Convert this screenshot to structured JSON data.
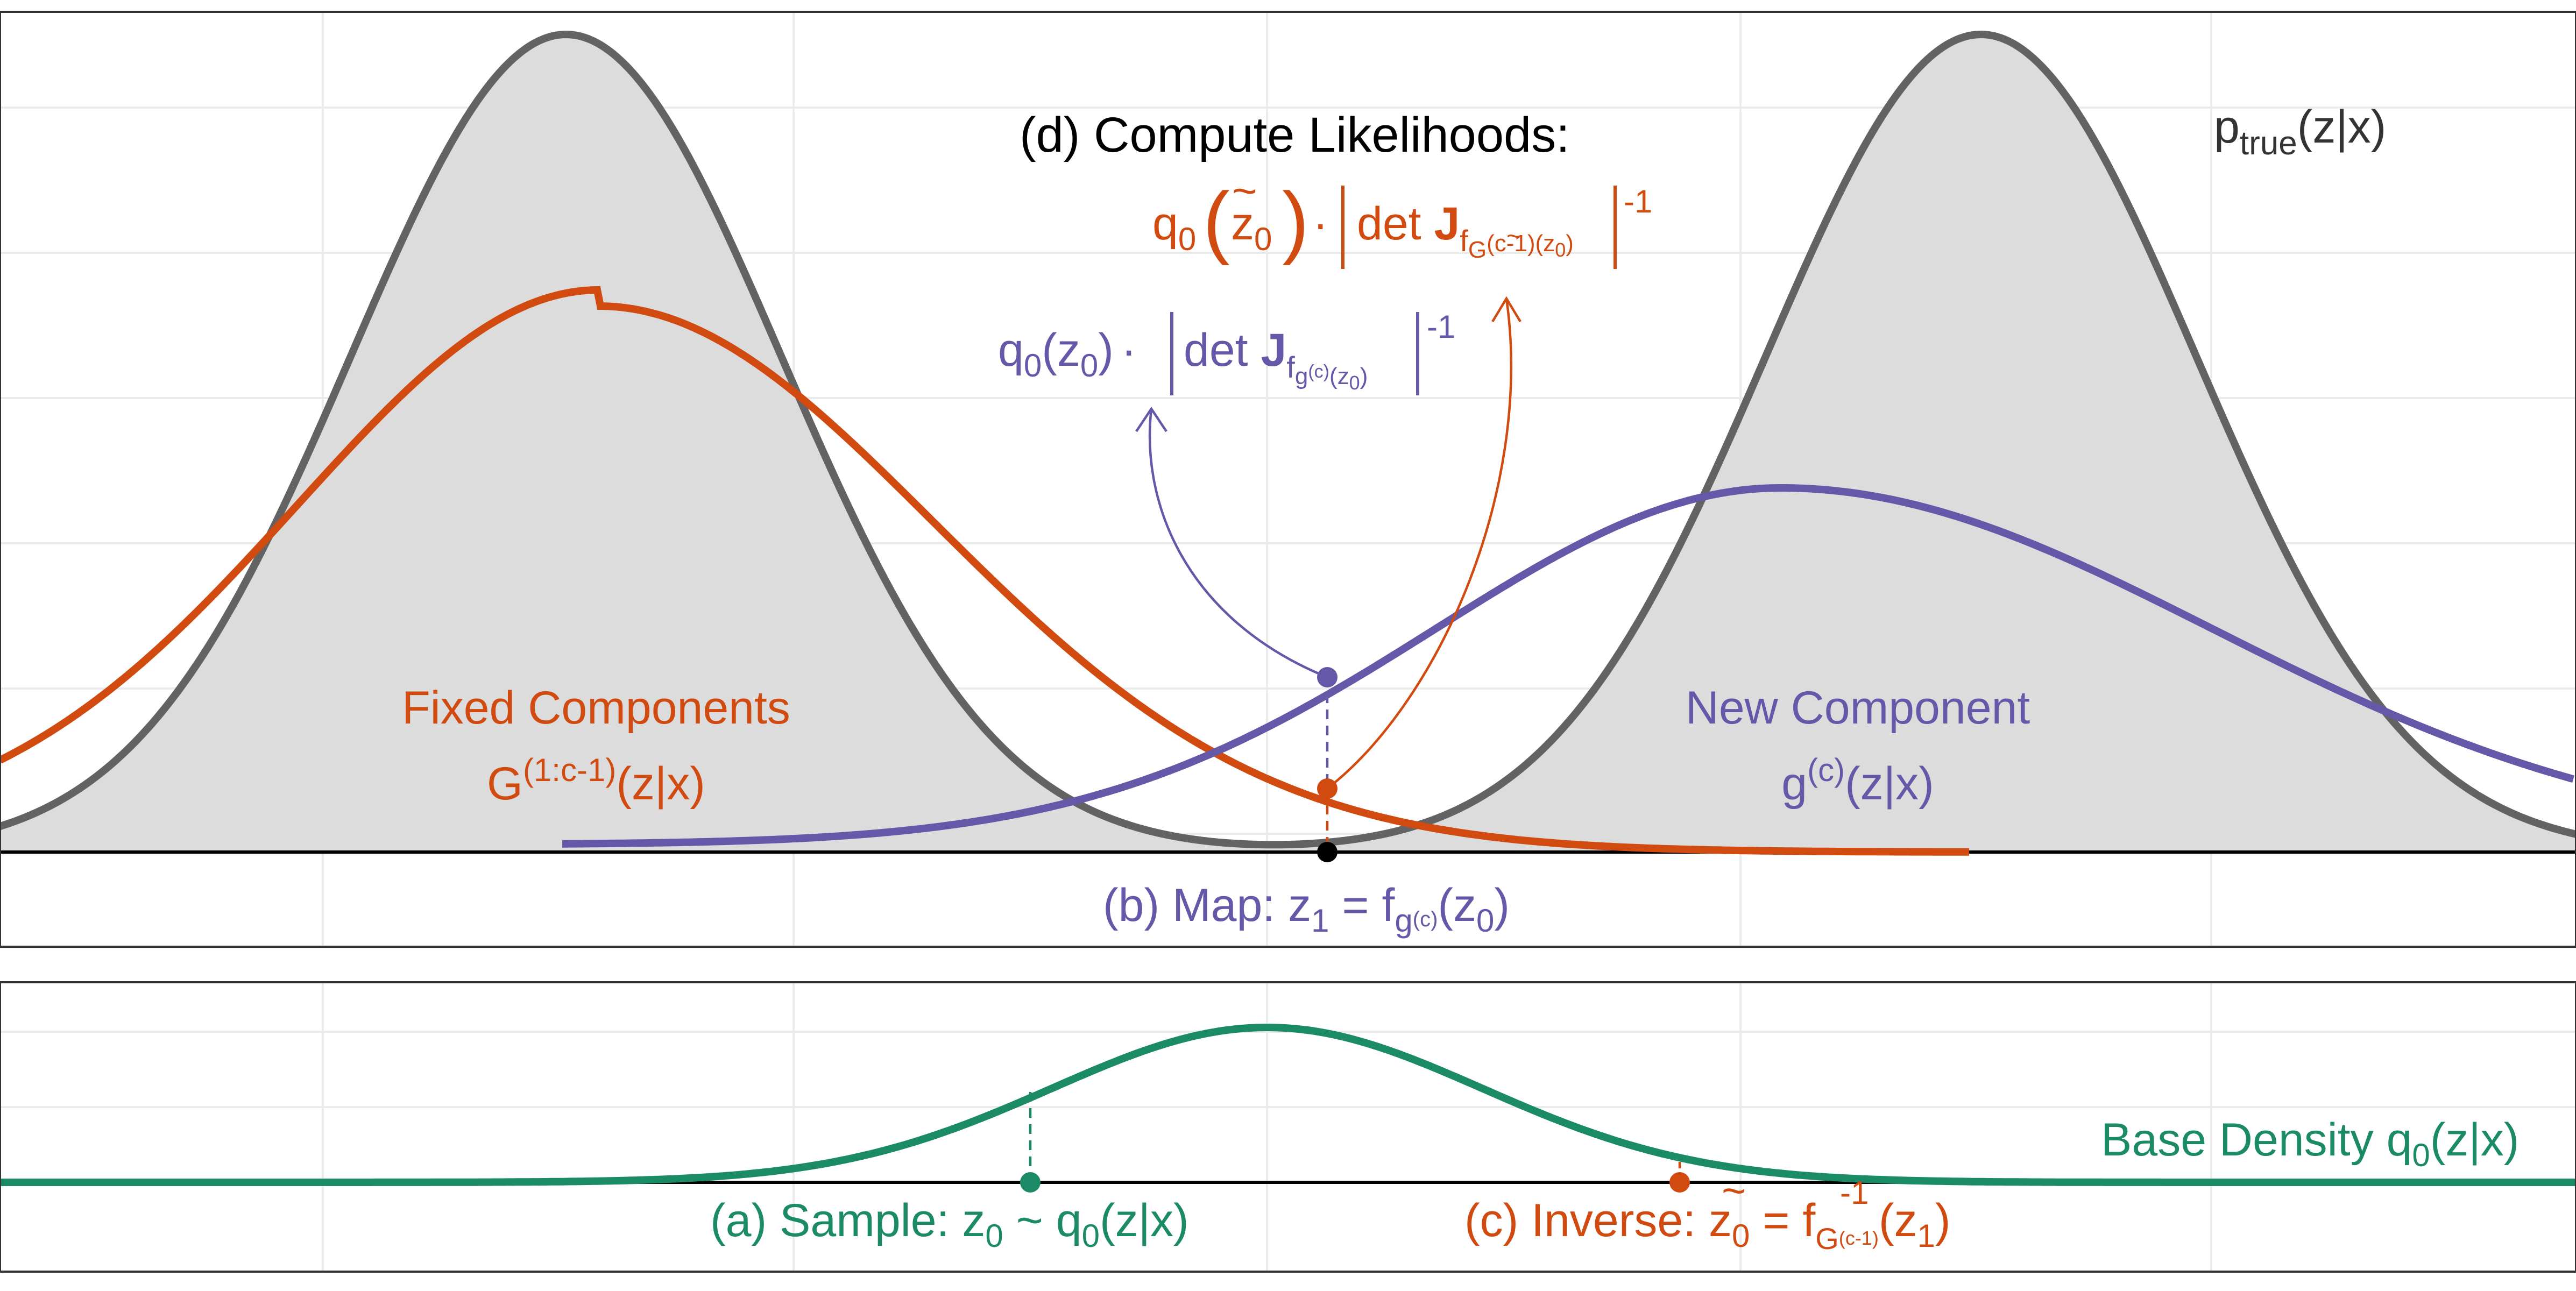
{
  "colors": {
    "gray_fill": "#dcdcdc",
    "gray_line": "#636363",
    "grid": "#ebebeb",
    "panel_border": "#333333",
    "orange": "#d14a0f",
    "purple": "#6558a8",
    "green": "#1b8a66",
    "black": "#000000"
  },
  "labels": {
    "compute_likelihoods": "(d) Compute Likelihoods:",
    "p_true_main": "p",
    "p_true_sub": "true",
    "p_true_tail": "(z|x)",
    "fixed_line1": "Fixed Components",
    "fixed_G": "G",
    "fixed_sup": "(1:c-1)",
    "fixed_tail": "(z|x)",
    "new_line1": "New Component",
    "new_g": "g",
    "new_sup": "(c)",
    "new_tail": "(z|x)",
    "map_text": "(b) Map: z",
    "map_sub1": "1",
    "map_eq": " = f",
    "map_sub_g": "g",
    "map_sub_c": "(c)",
    "map_paren": "(z",
    "map_sub0": "0",
    "map_close": ")",
    "sample_text": "(a) Sample: z",
    "sample_sub0": "0",
    "sample_tail": " ~ q",
    "sample_sub_q": "0",
    "sample_end": "(z|x)",
    "inverse_text": "(c) Inverse: ",
    "inverse_z": "z",
    "inverse_tilde": "~",
    "inverse_sub0": "0",
    "inverse_eq": " = f",
    "inverse_sup": "-1",
    "inverse_subG": "G",
    "inverse_subc": "(c-1)",
    "inverse_paren": "(z",
    "inverse_sub1": "1",
    "inverse_close": ")",
    "base_text": "Base Density q",
    "base_sub0": "0",
    "base_tail": "(z|x)",
    "orange_formula_q": "q",
    "orange_formula_sub0": "0",
    "orange_formula_z": "z",
    "orange_formula_tilde": "~",
    "orange_formula_zsub": "0",
    "orange_formula_dot": "·",
    "orange_formula_det": "det ",
    "orange_formula_J": "J",
    "orange_formula_f": "f",
    "orange_formula_G": "G",
    "orange_formula_c": "(c-1)",
    "orange_formula_inner": "(z",
    "orange_formula_inner0": "0",
    "orange_formula_inner_close": ")",
    "orange_formula_exp": "-1",
    "purple_formula_q": "q",
    "purple_formula_sub0": "0",
    "purple_formula_arg": "(z",
    "purple_formula_arg0": "0",
    "purple_formula_close": ")",
    "purple_formula_dot": "·",
    "purple_formula_det": "det ",
    "purple_formula_J": "J",
    "purple_formula_f": "f",
    "purple_formula_g": "g",
    "purple_formula_c": "(c)",
    "purple_formula_inner": "(z",
    "purple_formula_inner0": "0",
    "purple_formula_inner_close": ")",
    "purple_formula_exp": "-1"
  }
}
